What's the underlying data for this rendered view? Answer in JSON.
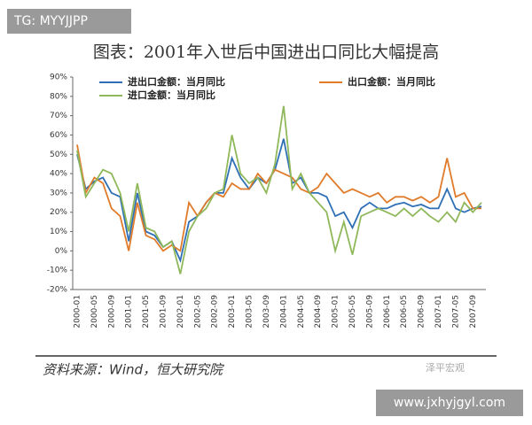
{
  "overlays": {
    "tag": "TG: MYYJJPP",
    "site": "www.jxhyjgyl.com",
    "logo": "泽平宏观"
  },
  "chart_data": {
    "type": "line",
    "title": "图表：2001年入世后中国进出口同比大幅提高",
    "source": "资料来源：Wind，恒大研究院",
    "legend": "top-left",
    "grid": false,
    "categories": [
      "2000-01",
      null,
      "2000-05",
      null,
      "2000-09",
      null,
      "2001-01",
      null,
      "2001-05",
      null,
      "2001-09",
      null,
      "2002-01",
      null,
      "2002-05",
      null,
      "2002-09",
      null,
      "2003-01",
      null,
      "2003-05",
      null,
      "2003-09",
      null,
      "2004-01",
      null,
      "2004-05",
      null,
      "2004-09",
      null,
      "2005-01",
      null,
      "2005-05",
      null,
      "2005-09",
      null,
      "2006-01",
      null,
      "2006-05",
      null,
      "2006-09",
      null,
      "2007-01",
      null,
      "2007-05",
      null,
      "2007-09",
      null
    ],
    "series": [
      {
        "name": "进出口金额：当月同比",
        "color": "#2f6fb5",
        "values": [
          50,
          32,
          36,
          38,
          30,
          28,
          5,
          30,
          10,
          8,
          2,
          5,
          -5,
          15,
          18,
          25,
          30,
          30,
          48,
          38,
          32,
          38,
          35,
          42,
          58,
          35,
          38,
          30,
          30,
          28,
          18,
          20,
          12,
          22,
          25,
          22,
          22,
          24,
          25,
          23,
          24,
          22,
          22,
          32,
          22,
          20,
          22,
          23
        ]
      },
      {
        "name": "出口金额：当月同比",
        "color": "#e07b2a",
        "values": [
          55,
          30,
          38,
          35,
          22,
          18,
          0,
          25,
          8,
          6,
          0,
          3,
          0,
          25,
          18,
          25,
          30,
          28,
          35,
          32,
          32,
          40,
          35,
          42,
          40,
          38,
          32,
          30,
          33,
          40,
          35,
          30,
          32,
          30,
          28,
          30,
          25,
          28,
          28,
          26,
          28,
          25,
          28,
          48,
          28,
          30,
          22,
          22
        ]
      },
      {
        "name": "进口金额：当月同比",
        "color": "#8fb85a",
        "values": [
          52,
          28,
          35,
          42,
          40,
          30,
          10,
          35,
          12,
          10,
          2,
          5,
          -12,
          10,
          18,
          22,
          30,
          32,
          60,
          40,
          35,
          38,
          30,
          45,
          75,
          32,
          40,
          30,
          25,
          20,
          0,
          15,
          -2,
          18,
          20,
          22,
          20,
          18,
          22,
          18,
          22,
          18,
          15,
          20,
          15,
          25,
          20,
          25
        ]
      }
    ],
    "ylim": [
      -20,
      90
    ],
    "yticks": [
      {
        "value": -20,
        "label": "-20%"
      },
      {
        "value": -10,
        "label": "-10%"
      },
      {
        "value": 0,
        "label": "0%"
      },
      {
        "value": 10,
        "label": "10%"
      },
      {
        "value": 20,
        "label": "20%"
      },
      {
        "value": 30,
        "label": "30%"
      },
      {
        "value": 40,
        "label": "40%"
      },
      {
        "value": 50,
        "label": "50%"
      },
      {
        "value": 60,
        "label": "60%"
      },
      {
        "value": 70,
        "label": "70%"
      },
      {
        "value": 80,
        "label": "80%"
      },
      {
        "value": 90,
        "label": "90%"
      }
    ]
  }
}
